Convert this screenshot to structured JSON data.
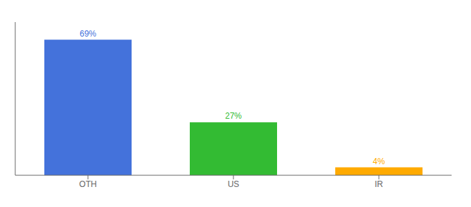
{
  "chart_data": {
    "type": "bar",
    "categories": [
      "OTH",
      "US",
      "IR"
    ],
    "values": [
      69,
      27,
      4
    ],
    "colors": [
      "#4472db",
      "#33bb33",
      "#ffaa00"
    ],
    "data_labels": true,
    "value_labels": [
      "69%",
      "27%",
      "4%"
    ],
    "ylim": [
      0,
      78
    ],
    "tick_labels": "x",
    "grid": false
  }
}
